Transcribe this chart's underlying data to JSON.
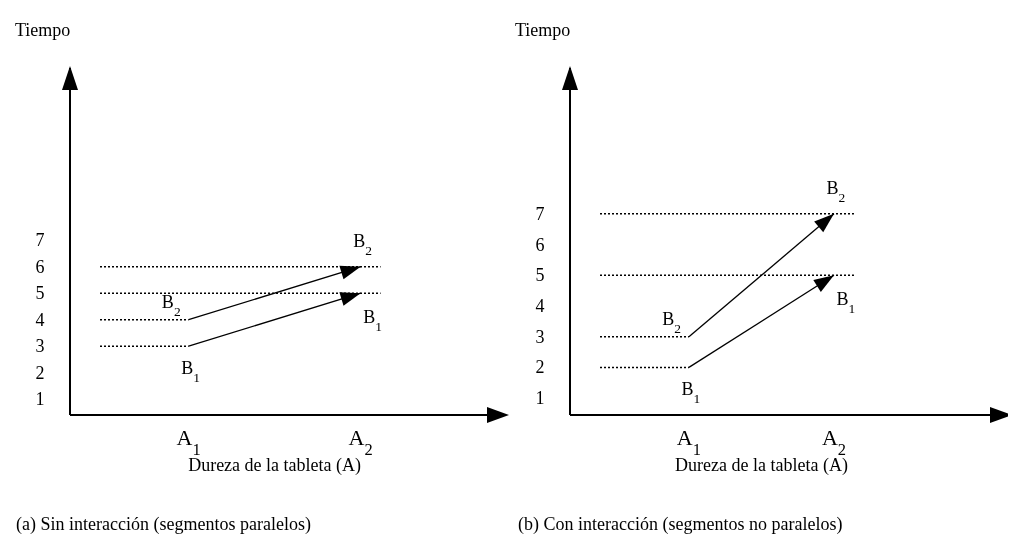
{
  "chart_data": [
    {
      "type": "line",
      "xlabel": "Dureza de la tableta (A)",
      "ylabel": "Tiempo",
      "categories": [
        "A$_{1}$",
        "A$_{2}$"
      ],
      "series": [
        {
          "name": "B$_{1}$",
          "color": "#000000",
          "values": [
            3,
            5
          ]
        },
        {
          "name": "B$_{2}$",
          "color": "#000000",
          "values": [
            4,
            6
          ]
        }
      ],
      "ylim": [
        0.4,
        13.5
      ],
      "yticks": [
        1,
        2,
        3,
        4,
        5,
        6,
        7
      ],
      "grid": false,
      "legend": false,
      "line_style": "solid",
      "ref_lines": [
        {
          "axis": "y",
          "value": 3,
          "line_style": "dotted"
        },
        {
          "axis": "y",
          "value": 4,
          "line_style": "dotted"
        },
        {
          "axis": "y",
          "value": 5,
          "line_style": "dotted"
        },
        {
          "axis": "y",
          "value": 6,
          "line_style": "dotted"
        }
      ],
      "annotations": [
        "(a) Sin interacción (segmentos paralelos)"
      ]
    },
    {
      "type": "line",
      "xlabel": "Dureza de la tableta (A)",
      "ylabel": "Tiempo",
      "categories": [
        "A$_{1}$",
        "A$_{2}$"
      ],
      "series": [
        {
          "name": "B$_{1}$",
          "color": "#000000",
          "values": [
            2,
            5
          ]
        },
        {
          "name": "B$_{2}$",
          "color": "#000000",
          "values": [
            3,
            7
          ]
        }
      ],
      "ylim": [
        0.45,
        11.75
      ],
      "yticks": [
        1,
        2,
        3,
        4,
        5,
        6,
        7
      ],
      "grid": false,
      "legend": false,
      "line_style": "solid",
      "ref_lines": [
        {
          "axis": "y",
          "value": 2,
          "line_style": "dotted"
        },
        {
          "axis": "y",
          "value": 3,
          "line_style": "dotted"
        },
        {
          "axis": "y",
          "value": 5,
          "line_style": "dotted"
        },
        {
          "axis": "y",
          "value": 7,
          "line_style": "dotted"
        }
      ],
      "annotations": [
        "(b) Con interacción (segmentos no paralelos)"
      ]
    }
  ]
}
